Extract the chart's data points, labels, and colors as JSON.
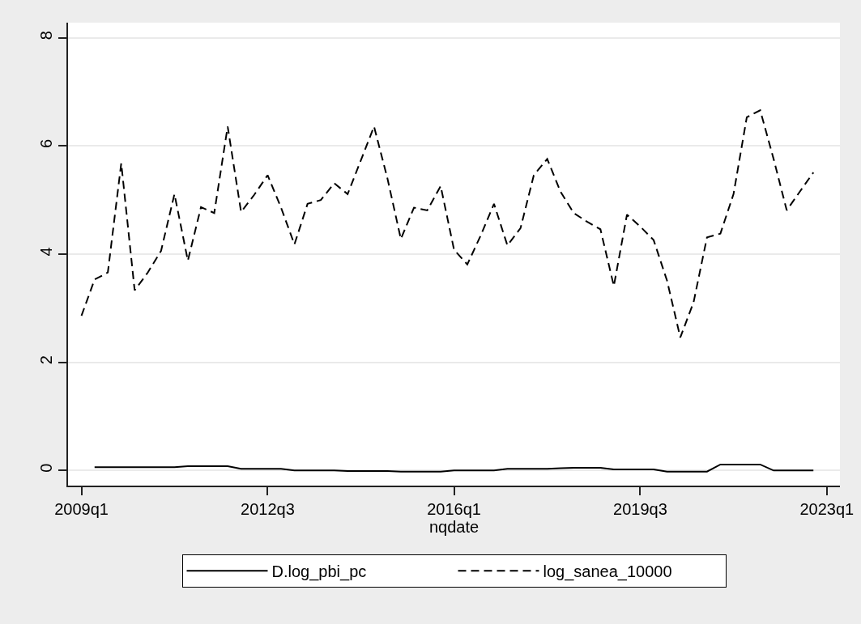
{
  "chart_data": {
    "type": "line",
    "xlabel": "nqdate",
    "x": [
      "2009-01",
      "2009-04",
      "2009-07",
      "2009-10",
      "2010-01",
      "2010-04",
      "2010-07",
      "2010-10",
      "2011-01",
      "2011-04",
      "2011-07",
      "2011-10",
      "2012-01",
      "2012-04",
      "2012-07",
      "2012-10",
      "2013-01",
      "2013-04",
      "2013-07",
      "2013-10",
      "2014-01",
      "2014-04",
      "2014-07",
      "2014-10",
      "2015-01",
      "2015-04",
      "2015-07",
      "2015-10",
      "2016-01",
      "2016-04",
      "2016-07",
      "2016-10",
      "2017-01",
      "2017-04",
      "2017-07",
      "2017-10",
      "2018-01",
      "2018-04",
      "2018-07",
      "2018-10",
      "2019-01",
      "2019-04",
      "2019-07",
      "2019-10",
      "2020-01",
      "2020-04",
      "2020-07",
      "2020-10",
      "2021-01",
      "2021-04",
      "2021-07",
      "2021-10",
      "2022-01",
      "2022-04",
      "2022-07",
      "2022-10"
    ],
    "series": [
      {
        "name": "D.log_pbi_pc",
        "color": "#000000",
        "line_style": "solid",
        "values": [
          null,
          0.06,
          0.06,
          0.06,
          0.06,
          0.06,
          0.06,
          0.06,
          0.08,
          0.08,
          0.08,
          0.08,
          0.03,
          0.03,
          0.03,
          0.03,
          0.0,
          0.0,
          0.0,
          0.0,
          -0.01,
          -0.01,
          -0.01,
          -0.01,
          -0.02,
          -0.02,
          -0.02,
          -0.02,
          0.0,
          0.0,
          0.0,
          0.0,
          0.03,
          0.03,
          0.03,
          0.03,
          0.04,
          0.05,
          0.05,
          0.05,
          0.02,
          0.02,
          0.02,
          0.02,
          -0.02,
          -0.02,
          -0.02,
          -0.02,
          0.11,
          0.11,
          0.11,
          0.11,
          0.0,
          0.0,
          0.0,
          0.0
        ]
      },
      {
        "name": "log_sanea_10000",
        "color": "#000000",
        "line_style": "dashed",
        "values": [
          2.86,
          3.53,
          3.66,
          5.68,
          3.33,
          3.66,
          4.06,
          5.11,
          3.88,
          4.87,
          4.76,
          6.36,
          4.78,
          5.1,
          5.46,
          4.86,
          4.18,
          4.93,
          5.0,
          5.31,
          5.11,
          5.73,
          6.36,
          5.4,
          4.28,
          4.86,
          4.81,
          5.26,
          4.08,
          3.81,
          4.34,
          4.93,
          4.16,
          4.48,
          5.46,
          5.76,
          5.15,
          4.76,
          4.6,
          4.46,
          3.41,
          4.73,
          4.51,
          4.26,
          3.51,
          2.46,
          3.11,
          4.31,
          4.38,
          5.11,
          6.53,
          6.66,
          5.76,
          4.81,
          5.16,
          5.51
        ]
      }
    ],
    "xlim": [
      "2008-10",
      "2023-04"
    ],
    "xticks": [
      {
        "value": "2009-01",
        "label": "2009q1"
      },
      {
        "value": "2012-07",
        "label": "2012q3"
      },
      {
        "value": "2016-01",
        "label": "2016q1"
      },
      {
        "value": "2019-07",
        "label": "2019q3"
      },
      {
        "value": "2023-01",
        "label": "2023q1"
      }
    ],
    "ylim": [
      -0.28,
      8.28
    ],
    "yticks": [
      0,
      2,
      4,
      6,
      8
    ],
    "grid": "y",
    "legend": "bottom"
  }
}
